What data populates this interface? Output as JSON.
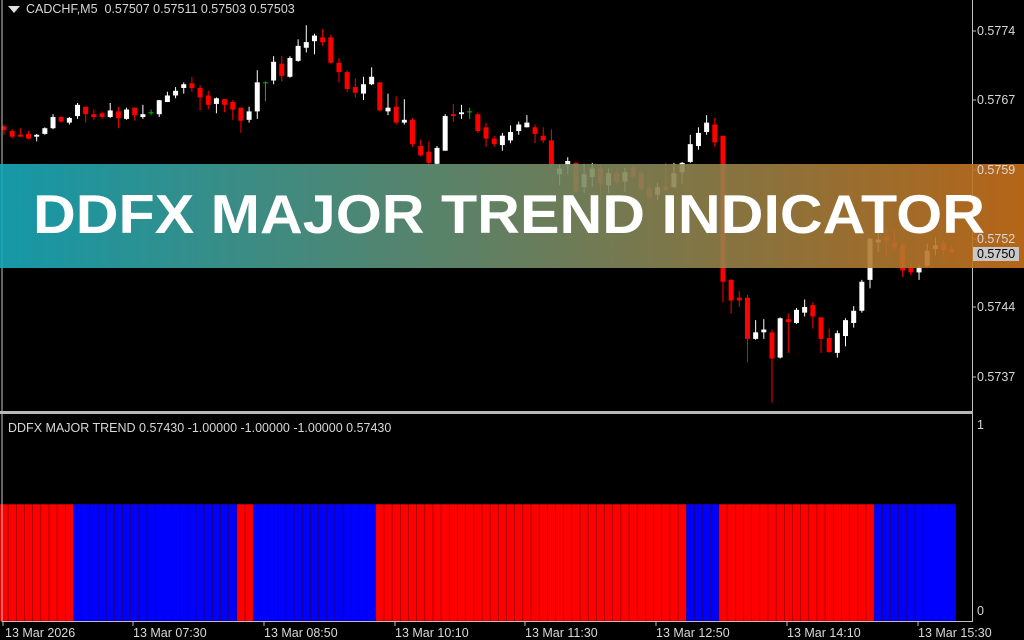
{
  "header": {
    "symbol": "CADCHF,M5",
    "ohlc_text": "0.57507 0.57511 0.57503 0.57503"
  },
  "banner": {
    "title": "DDFX MAJOR TREND INDICATOR",
    "gradient_from": "#17a9b9",
    "gradient_to": "#c8701a"
  },
  "indicator": {
    "title": "DDFX MAJOR TREND 0.57430 -1.00000 -1.00000 -1.00000 0.57430"
  },
  "price_axis": {
    "labels": [
      "0.5774",
      "0.5767",
      "0.5759",
      "0.5752",
      "0.5744",
      "0.5737"
    ],
    "current": "0.5750"
  },
  "indicator_axis": {
    "labels": [
      "1",
      "0"
    ]
  },
  "time_axis": {
    "labels": [
      "13 Mar 2026",
      "13 Mar 07:30",
      "13 Mar 08:50",
      "13 Mar 10:10",
      "13 Mar 11:30",
      "13 Mar 12:50",
      "13 Mar 14:10",
      "13 Mar 15:30"
    ]
  },
  "colors": {
    "bull": "#ffffff",
    "bear": "#ff0000",
    "doji": "#00c000",
    "trend_red": "#ff0000",
    "trend_blue": "#0000ff",
    "background": "#000000"
  },
  "chart_data": [
    {
      "type": "candlestick",
      "title": "CADCHF,M5",
      "ylim": [
        0.57335,
        0.57773
      ],
      "grid": false,
      "ticks": [
        0.5774,
        0.5767,
        0.5759,
        0.5752,
        0.5744,
        0.5737
      ],
      "current_price": 0.57503,
      "ohlc": [
        [
          0.57638,
          0.5764,
          0.57629,
          0.57634
        ],
        [
          0.57633,
          0.57635,
          0.57625,
          0.57627
        ],
        [
          0.57629,
          0.57636,
          0.57627,
          0.57627
        ],
        [
          0.5763,
          0.57633,
          0.57624,
          0.57625
        ],
        [
          0.57627,
          0.5763,
          0.57622,
          0.57629
        ],
        [
          0.5763,
          0.57637,
          0.57629,
          0.57636
        ],
        [
          0.57636,
          0.57651,
          0.57635,
          0.57648
        ],
        [
          0.57648,
          0.57649,
          0.57642,
          0.57643
        ],
        [
          0.57642,
          0.57648,
          0.5764,
          0.57647
        ],
        [
          0.57649,
          0.57663,
          0.57646,
          0.57661
        ],
        [
          0.57659,
          0.57659,
          0.57642,
          0.57651
        ],
        [
          0.57651,
          0.57656,
          0.57645,
          0.57648
        ],
        [
          0.57652,
          0.57654,
          0.57646,
          0.57648
        ],
        [
          0.57648,
          0.57663,
          0.57647,
          0.57655
        ],
        [
          0.57654,
          0.57659,
          0.57636,
          0.57647
        ],
        [
          0.57646,
          0.57658,
          0.57645,
          0.57656
        ],
        [
          0.57658,
          0.57658,
          0.57644,
          0.5765
        ],
        [
          0.57648,
          0.57661,
          0.57646,
          0.57651
        ],
        [
          0.57653,
          0.57656,
          0.5765,
          0.57653
        ],
        [
          0.57651,
          0.57666,
          0.57648,
          0.57666
        ],
        [
          0.57664,
          0.57675,
          0.57664,
          0.57671
        ],
        [
          0.57671,
          0.5768,
          0.57668,
          0.57676
        ],
        [
          0.57679,
          0.57685,
          0.57673,
          0.57683
        ],
        [
          0.57684,
          0.57691,
          0.57675,
          0.57679
        ],
        [
          0.57679,
          0.57682,
          0.57655,
          0.57669
        ],
        [
          0.57671,
          0.57676,
          0.57656,
          0.57661
        ],
        [
          0.57662,
          0.57669,
          0.57652,
          0.57668
        ],
        [
          0.57667,
          0.57667,
          0.57653,
          0.57661
        ],
        [
          0.57664,
          0.57666,
          0.57645,
          0.57656
        ],
        [
          0.57658,
          0.57658,
          0.57631,
          0.57644
        ],
        [
          0.57645,
          0.57659,
          0.57642,
          0.57654
        ],
        [
          0.57654,
          0.57698,
          0.57646,
          0.57685
        ],
        [
          0.57685,
          0.57686,
          0.57665,
          0.57685
        ],
        [
          0.57687,
          0.57713,
          0.57683,
          0.57707
        ],
        [
          0.57705,
          0.57713,
          0.57686,
          0.57692
        ],
        [
          0.57691,
          0.57713,
          0.5769,
          0.57711
        ],
        [
          0.57708,
          0.57731,
          0.57707,
          0.57724
        ],
        [
          0.57722,
          0.57746,
          0.57717,
          0.57728
        ],
        [
          0.57729,
          0.57737,
          0.57715,
          0.57735
        ],
        [
          0.57733,
          0.57742,
          0.57724,
          0.57728
        ],
        [
          0.57733,
          0.57736,
          0.57705,
          0.57706
        ],
        [
          0.57706,
          0.57711,
          0.57685,
          0.57696
        ],
        [
          0.57696,
          0.57698,
          0.57675,
          0.57678
        ],
        [
          0.5768,
          0.57689,
          0.57669,
          0.57674
        ],
        [
          0.57673,
          0.57691,
          0.57666,
          0.57683
        ],
        [
          0.57683,
          0.57701,
          0.57682,
          0.57691
        ],
        [
          0.57685,
          0.57685,
          0.57654,
          0.57655
        ],
        [
          0.57654,
          0.57673,
          0.5765,
          0.57658
        ],
        [
          0.57659,
          0.5767,
          0.5764,
          0.57642
        ],
        [
          0.57642,
          0.57667,
          0.5764,
          0.57645
        ],
        [
          0.57645,
          0.57647,
          0.57616,
          0.57619
        ],
        [
          0.57617,
          0.57624,
          0.57606,
          0.57607
        ],
        [
          0.57611,
          0.57622,
          0.57594,
          0.57599
        ],
        [
          0.57598,
          0.57617,
          0.57597,
          0.57615
        ],
        [
          0.57612,
          0.57651,
          0.57612,
          0.57649
        ],
        [
          0.57651,
          0.57662,
          0.57643,
          0.57649
        ],
        [
          0.57651,
          0.57661,
          0.57646,
          0.57653
        ],
        [
          0.57654,
          0.57658,
          0.57646,
          0.57654
        ],
        [
          0.57651,
          0.57653,
          0.57631,
          0.57633
        ],
        [
          0.57637,
          0.57642,
          0.57616,
          0.57625
        ],
        [
          0.57625,
          0.57628,
          0.57616,
          0.57619
        ],
        [
          0.57618,
          0.57631,
          0.57612,
          0.57628
        ],
        [
          0.57623,
          0.57639,
          0.5762,
          0.57632
        ],
        [
          0.57633,
          0.57643,
          0.57629,
          0.5764
        ],
        [
          0.57637,
          0.5765,
          0.57637,
          0.57642
        ],
        [
          0.57637,
          0.5764,
          0.5762,
          0.5763
        ],
        [
          0.57628,
          0.57637,
          0.5762,
          0.57623
        ],
        [
          0.57623,
          0.57635,
          0.57594,
          0.57597
        ],
        [
          0.57587,
          0.57597,
          0.57575,
          0.57593
        ],
        [
          0.57597,
          0.57605,
          0.57587,
          0.57601
        ],
        [
          0.57599,
          0.576,
          0.57567,
          0.57568
        ],
        [
          0.57573,
          0.57598,
          0.57567,
          0.57587
        ],
        [
          0.57584,
          0.57599,
          0.57573,
          0.57593
        ],
        [
          0.57593,
          0.57597,
          0.57559,
          0.57577
        ],
        [
          0.57575,
          0.57593,
          0.57567,
          0.57588
        ],
        [
          0.57588,
          0.57591,
          0.57575,
          0.57578
        ],
        [
          0.57579,
          0.57594,
          0.57568,
          0.57589
        ],
        [
          0.57594,
          0.57597,
          0.57581,
          0.57584
        ],
        [
          0.57588,
          0.57593,
          0.57568,
          0.57571
        ],
        [
          0.57572,
          0.57576,
          0.57559,
          0.57562
        ],
        [
          0.57565,
          0.57578,
          0.57559,
          0.57573
        ],
        [
          0.57574,
          0.57599,
          0.57569,
          0.5757
        ],
        [
          0.57573,
          0.57599,
          0.57572,
          0.57588
        ],
        [
          0.57589,
          0.576,
          0.57577,
          0.57599
        ],
        [
          0.576,
          0.57629,
          0.57599,
          0.57619
        ],
        [
          0.57617,
          0.57637,
          0.57613,
          0.57631
        ],
        [
          0.57632,
          0.5765,
          0.57629,
          0.57642
        ],
        [
          0.5764,
          0.57647,
          0.57616,
          0.57621
        ],
        [
          0.57628,
          0.57628,
          0.5745,
          0.57472
        ],
        [
          0.57474,
          0.57475,
          0.57438,
          0.57452
        ],
        [
          0.57455,
          0.57462,
          0.57445,
          0.57452
        ],
        [
          0.57455,
          0.57458,
          0.57386,
          0.57411
        ],
        [
          0.57411,
          0.57431,
          0.5741,
          0.57418
        ],
        [
          0.57418,
          0.57432,
          0.57411,
          0.57421
        ],
        [
          0.57418,
          0.57421,
          0.57343,
          0.5739
        ],
        [
          0.57391,
          0.57434,
          0.5739,
          0.57433
        ],
        [
          0.57432,
          0.57438,
          0.57396,
          0.57429
        ],
        [
          0.57428,
          0.57444,
          0.57427,
          0.57442
        ],
        [
          0.57439,
          0.57453,
          0.57435,
          0.57445
        ],
        [
          0.57447,
          0.5745,
          0.57422,
          0.57435
        ],
        [
          0.57434,
          0.57434,
          0.57396,
          0.57411
        ],
        [
          0.57412,
          0.57422,
          0.57396,
          0.57397
        ],
        [
          0.57396,
          0.5742,
          0.57391,
          0.57417
        ],
        [
          0.57414,
          0.57433,
          0.57403,
          0.57431
        ],
        [
          0.57428,
          0.57446,
          0.57423,
          0.57441
        ],
        [
          0.57441,
          0.57474,
          0.57439,
          0.57472
        ],
        [
          0.57474,
          0.57519,
          0.57465,
          0.57518
        ],
        [
          0.57514,
          0.57529,
          0.57504,
          0.57517
        ],
        [
          0.5752,
          0.57529,
          0.57498,
          0.57516
        ],
        [
          0.57514,
          0.57529,
          0.57504,
          0.57509
        ],
        [
          0.57511,
          0.57513,
          0.57477,
          0.57484
        ],
        [
          0.57487,
          0.57493,
          0.57479,
          0.57482
        ],
        [
          0.57482,
          0.5749,
          0.57474,
          0.57487
        ],
        [
          0.57489,
          0.57513,
          0.57488,
          0.57505
        ],
        [
          0.57507,
          0.5752,
          0.575,
          0.57511
        ],
        [
          0.57513,
          0.57516,
          0.57498,
          0.57506
        ],
        [
          0.57507,
          0.57511,
          0.57503,
          0.57503
        ]
      ]
    },
    {
      "type": "bar",
      "title": "DDFX MAJOR TREND",
      "ylim": [
        0,
        1
      ],
      "ticks": [
        1,
        0
      ],
      "level": 0.5743,
      "segments": [
        {
          "color": "red",
          "count": 9
        },
        {
          "color": "blue",
          "count": 20
        },
        {
          "color": "red",
          "count": 2
        },
        {
          "color": "blue",
          "count": 15
        },
        {
          "color": "red",
          "count": 38
        },
        {
          "color": "blue",
          "count": 4
        },
        {
          "color": "red",
          "count": 19
        },
        {
          "color": "blue",
          "count": 10
        }
      ]
    }
  ]
}
